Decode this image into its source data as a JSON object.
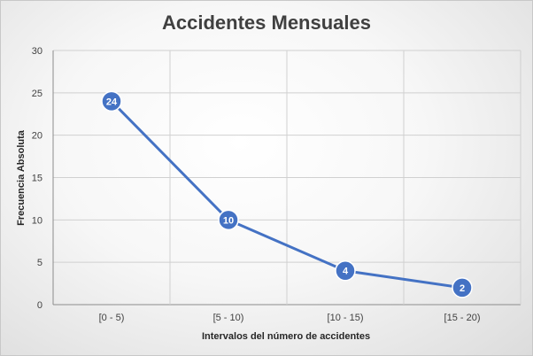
{
  "chart_data": {
    "type": "line",
    "title": "Accidentes Mensuales",
    "xlabel": "Intervalos del número de accidentes",
    "ylabel": "Frecuencia Absoluta",
    "categories": [
      "[0 - 5)",
      "[5 - 10)",
      "[10 - 15)",
      "[15 - 20)"
    ],
    "series": [
      {
        "values": [
          24,
          10,
          4,
          2
        ]
      }
    ],
    "ylim": [
      0,
      30
    ],
    "yticks": [
      0,
      5,
      10,
      15,
      20,
      25,
      30
    ],
    "grid": true,
    "data_labels": true,
    "line_color": "#4472c4",
    "marker_color": "#4472c4"
  }
}
